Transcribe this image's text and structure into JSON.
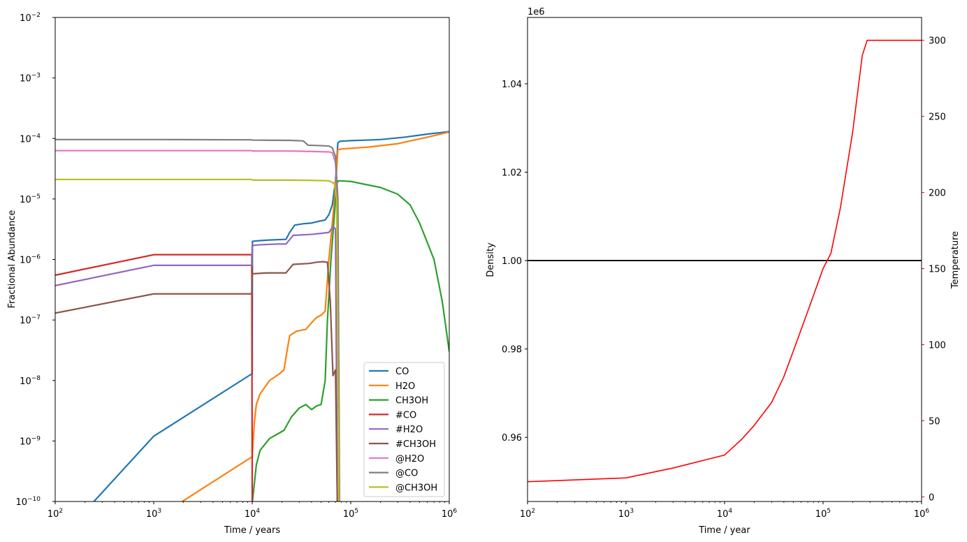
{
  "chart_data": [
    {
      "type": "line",
      "xlabel": "Time / years",
      "ylabel": "Fractional Abundance",
      "xscale": "log",
      "yscale": "log",
      "xlim": [
        100,
        1000000
      ],
      "ylim": [
        1e-10,
        0.01
      ],
      "xticks": [
        {
          "value": 100,
          "base": "10",
          "exp": "2"
        },
        {
          "value": 1000,
          "base": "10",
          "exp": "3"
        },
        {
          "value": 10000,
          "base": "10",
          "exp": "4"
        },
        {
          "value": 100000,
          "base": "10",
          "exp": "5"
        },
        {
          "value": 1000000,
          "base": "10",
          "exp": "6"
        }
      ],
      "yticks": [
        {
          "value": 1e-10,
          "base": "10",
          "exp": "−10"
        },
        {
          "value": 1e-09,
          "base": "10",
          "exp": "−9"
        },
        {
          "value": 1e-08,
          "base": "10",
          "exp": "−8"
        },
        {
          "value": 1e-07,
          "base": "10",
          "exp": "−7"
        },
        {
          "value": 1e-06,
          "base": "10",
          "exp": "−6"
        },
        {
          "value": 1e-05,
          "base": "10",
          "exp": "−5"
        },
        {
          "value": 0.0001,
          "base": "10",
          "exp": "−4"
        },
        {
          "value": 0.001,
          "base": "10",
          "exp": "−3"
        },
        {
          "value": 0.01,
          "base": "10",
          "exp": "−2"
        }
      ],
      "legend_position": "lower-right",
      "series": [
        {
          "name": "CO",
          "color": "#1f77b4",
          "points": [
            [
              100,
              2e-11
            ],
            [
              1000,
              1.2e-09
            ],
            [
              10000,
              1.3e-08
            ],
            [
              10050,
              2e-06
            ],
            [
              12000,
              2.05e-06
            ],
            [
              15000,
              2.1e-06
            ],
            [
              22000,
              2.15e-06
            ],
            [
              24000,
              2.8e-06
            ],
            [
              27000,
              3.7e-06
            ],
            [
              33000,
              3.9e-06
            ],
            [
              40000,
              4e-06
            ],
            [
              45000,
              4.2e-06
            ],
            [
              55000,
              4.5e-06
            ],
            [
              60000,
              5.5e-06
            ],
            [
              65000,
              8e-06
            ],
            [
              70000,
              2e-05
            ],
            [
              74000,
              8.5e-05
            ],
            [
              78000,
              9e-05
            ],
            [
              100000,
              9.2e-05
            ],
            [
              200000,
              9.6e-05
            ],
            [
              350000,
              0.000105
            ],
            [
              600000,
              0.000118
            ],
            [
              1000000,
              0.00013
            ]
          ]
        },
        {
          "name": "H2O",
          "color": "#ff7f0e",
          "points": [
            [
              1000,
              5e-11
            ],
            [
              10000,
              5.5e-10
            ],
            [
              10500,
              2e-09
            ],
            [
              11000,
              4e-09
            ],
            [
              12000,
              6e-09
            ],
            [
              15000,
              1e-08
            ],
            [
              19000,
              1.3e-08
            ],
            [
              21000,
              1.5e-08
            ],
            [
              22500,
              3e-08
            ],
            [
              24000,
              5.5e-08
            ],
            [
              28000,
              6.5e-08
            ],
            [
              35000,
              7e-08
            ],
            [
              40000,
              9e-08
            ],
            [
              45000,
              1.1e-07
            ],
            [
              50000,
              1.2e-07
            ],
            [
              55000,
              1.4e-07
            ],
            [
              60000,
              1e-06
            ],
            [
              65000,
              4e-06
            ],
            [
              70000,
              1.5e-05
            ],
            [
              74000,
              6.5e-05
            ],
            [
              80000,
              6.7e-05
            ],
            [
              150000,
              7.2e-05
            ],
            [
              300000,
              8.2e-05
            ],
            [
              600000,
              0.000105
            ],
            [
              1000000,
              0.000128
            ]
          ]
        },
        {
          "name": "CH3OH",
          "color": "#2ca02c",
          "points": [
            [
              10050,
              1e-10
            ],
            [
              11000,
              4e-10
            ],
            [
              12000,
              7e-10
            ],
            [
              15000,
              1.1e-09
            ],
            [
              18000,
              1.3e-09
            ],
            [
              21000,
              1.5e-09
            ],
            [
              25000,
              2.5e-09
            ],
            [
              30000,
              3.5e-09
            ],
            [
              35000,
              4e-09
            ],
            [
              40000,
              3.3e-09
            ],
            [
              45000,
              3.8e-09
            ],
            [
              50000,
              4e-09
            ],
            [
              55000,
              1e-08
            ],
            [
              58000,
              1e-07
            ],
            [
              63000,
              1e-06
            ],
            [
              68000,
              5e-06
            ],
            [
              72000,
              1.8e-05
            ],
            [
              75000,
              2e-05
            ],
            [
              100000,
              1.95e-05
            ],
            [
              200000,
              1.55e-05
            ],
            [
              300000,
              1.2e-05
            ],
            [
              400000,
              8e-06
            ],
            [
              500000,
              4e-06
            ],
            [
              700000,
              1e-06
            ],
            [
              850000,
              2e-07
            ],
            [
              1000000,
              3e-08
            ]
          ]
        },
        {
          "name": "#CO",
          "color": "#d62728",
          "points": [
            [
              100,
              5.5e-07
            ],
            [
              1000,
              1.2e-06
            ],
            [
              9900,
              1.2e-06
            ],
            [
              10000,
              1e-10
            ]
          ]
        },
        {
          "name": "#H2O",
          "color": "#9467bd",
          "points": [
            [
              100,
              3.7e-07
            ],
            [
              1000,
              8e-07
            ],
            [
              9900,
              8e-07
            ],
            [
              10000,
              1.7e-06
            ],
            [
              12000,
              1.75e-06
            ],
            [
              18000,
              1.8e-06
            ],
            [
              22000,
              1.8e-06
            ],
            [
              26000,
              2.5e-06
            ],
            [
              40000,
              2.6e-06
            ],
            [
              50000,
              2.7e-06
            ],
            [
              60000,
              2.8e-06
            ],
            [
              66000,
              3.5e-06
            ],
            [
              70000,
              3.2e-06
            ],
            [
              73000,
              1e-10
            ]
          ]
        },
        {
          "name": "#CH3OH",
          "color": "#8c564b",
          "points": [
            [
              100,
              1.3e-07
            ],
            [
              1000,
              2.7e-07
            ],
            [
              9900,
              2.7e-07
            ],
            [
              10000,
              5.8e-07
            ],
            [
              14000,
              6e-07
            ],
            [
              22000,
              6e-07
            ],
            [
              26000,
              8.3e-07
            ],
            [
              38000,
              8.6e-07
            ],
            [
              45000,
              9e-07
            ],
            [
              52000,
              9.2e-07
            ],
            [
              58000,
              9e-07
            ],
            [
              62000,
              2e-07
            ],
            [
              66000,
              1.2e-08
            ],
            [
              70000,
              1.5e-08
            ],
            [
              73000,
              1e-10
            ]
          ]
        },
        {
          "name": "@H2O",
          "color": "#e377c2",
          "points": [
            [
              100,
              6.3e-05
            ],
            [
              1000,
              6.3e-05
            ],
            [
              9900,
              6.3e-05
            ],
            [
              10100,
              6.2e-05
            ],
            [
              25000,
              6.2e-05
            ],
            [
              40000,
              6.1e-05
            ],
            [
              60000,
              6e-05
            ],
            [
              65000,
              5.8e-05
            ],
            [
              70000,
              4e-05
            ],
            [
              73000,
              1e-05
            ],
            [
              76000,
              1e-10
            ]
          ]
        },
        {
          "name": "@CO",
          "color": "#7f7f7f",
          "points": [
            [
              100,
              9.6e-05
            ],
            [
              1000,
              9.6e-05
            ],
            [
              9900,
              9.5e-05
            ],
            [
              10100,
              9.4e-05
            ],
            [
              25000,
              9.3e-05
            ],
            [
              33000,
              9.1e-05
            ],
            [
              37000,
              7.7e-05
            ],
            [
              40000,
              7.7e-05
            ],
            [
              50000,
              7.6e-05
            ],
            [
              60000,
              7.5e-05
            ],
            [
              65000,
              7e-05
            ],
            [
              70000,
              5e-05
            ],
            [
              74000,
              1e-05
            ],
            [
              77000,
              1e-10
            ]
          ]
        },
        {
          "name": "@CH3OH",
          "color": "#bcbd22",
          "points": [
            [
              100,
              2.1e-05
            ],
            [
              1000,
              2.1e-05
            ],
            [
              9900,
              2.1e-05
            ],
            [
              10100,
              2.05e-05
            ],
            [
              25000,
              2.05e-05
            ],
            [
              40000,
              2.03e-05
            ],
            [
              60000,
              2e-05
            ],
            [
              68000,
              1.8e-05
            ],
            [
              72000,
              1e-05
            ],
            [
              76000,
              1e-10
            ]
          ]
        }
      ]
    },
    {
      "type": "line",
      "xlabel": "Time / year",
      "ylabel": "Density",
      "ylabel_right": "Temperature",
      "offset_text": "1e6",
      "xscale": "log",
      "xlim": [
        100,
        1000000
      ],
      "ylim": [
        0.9455,
        1.055
      ],
      "ylim_right": [
        -3,
        315
      ],
      "xticks": [
        {
          "value": 100,
          "base": "10",
          "exp": "2"
        },
        {
          "value": 1000,
          "base": "10",
          "exp": "3"
        },
        {
          "value": 10000,
          "base": "10",
          "exp": "4"
        },
        {
          "value": 100000,
          "base": "10",
          "exp": "5"
        },
        {
          "value": 1000000,
          "base": "10",
          "exp": "6"
        }
      ],
      "yticks": [
        {
          "value": 0.96,
          "label": "0.96"
        },
        {
          "value": 0.98,
          "label": "0.98"
        },
        {
          "value": 1.0,
          "label": "1.00"
        },
        {
          "value": 1.02,
          "label": "1.02"
        },
        {
          "value": 1.04,
          "label": "1.04"
        }
      ],
      "yticks_right": [
        {
          "value": 0,
          "label": "0"
        },
        {
          "value": 50,
          "label": "50"
        },
        {
          "value": 100,
          "label": "100"
        },
        {
          "value": 150,
          "label": "150"
        },
        {
          "value": 200,
          "label": "200"
        },
        {
          "value": 250,
          "label": "250"
        },
        {
          "value": 300,
          "label": "300"
        }
      ],
      "right_axis_color": "#ff0000",
      "series": [
        {
          "axis": "left",
          "color": "#000000",
          "points": [
            [
              100,
              1.0
            ],
            [
              1000000,
              1.0
            ]
          ]
        },
        {
          "axis": "right",
          "color": "#ff0000",
          "points": [
            [
              100,
              10
            ],
            [
              1000,
              12.5
            ],
            [
              3000,
              19
            ],
            [
              10000,
              27.5
            ],
            [
              15000,
              38
            ],
            [
              20000,
              47
            ],
            [
              30000,
              62
            ],
            [
              40000,
              79
            ],
            [
              50000,
              96
            ],
            [
              70000,
              122
            ],
            [
              100000,
              150
            ],
            [
              120000,
              160
            ],
            [
              150000,
              190
            ],
            [
              200000,
              240
            ],
            [
              250000,
              290
            ],
            [
              280000,
              300
            ],
            [
              1000000,
              300
            ]
          ]
        }
      ]
    }
  ]
}
